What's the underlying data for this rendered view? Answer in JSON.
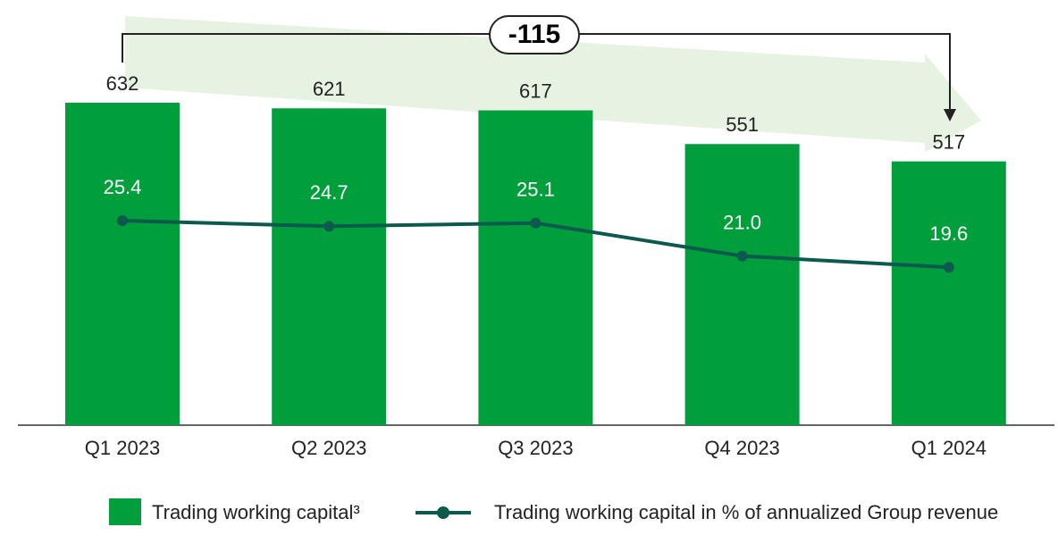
{
  "chart_data": {
    "type": "bar_line",
    "categories": [
      "Q1 2023",
      "Q2 2023",
      "Q3 2023",
      "Q4 2023",
      "Q1 2024"
    ],
    "series": [
      {
        "name": "Trading working capital³",
        "color": "#009f3c",
        "type": "bar",
        "values": [
          632,
          621,
          617,
          551,
          517
        ]
      },
      {
        "name": "Trading working capital in % of annualized Group revenue",
        "color": "#0c5a4e",
        "type": "line",
        "values": [
          25.4,
          24.7,
          25.1,
          21.0,
          19.6
        ],
        "value_labels": [
          "25.4",
          "24.7",
          "25.1",
          "21.0",
          "19.6"
        ]
      }
    ],
    "annotation": "-115"
  }
}
